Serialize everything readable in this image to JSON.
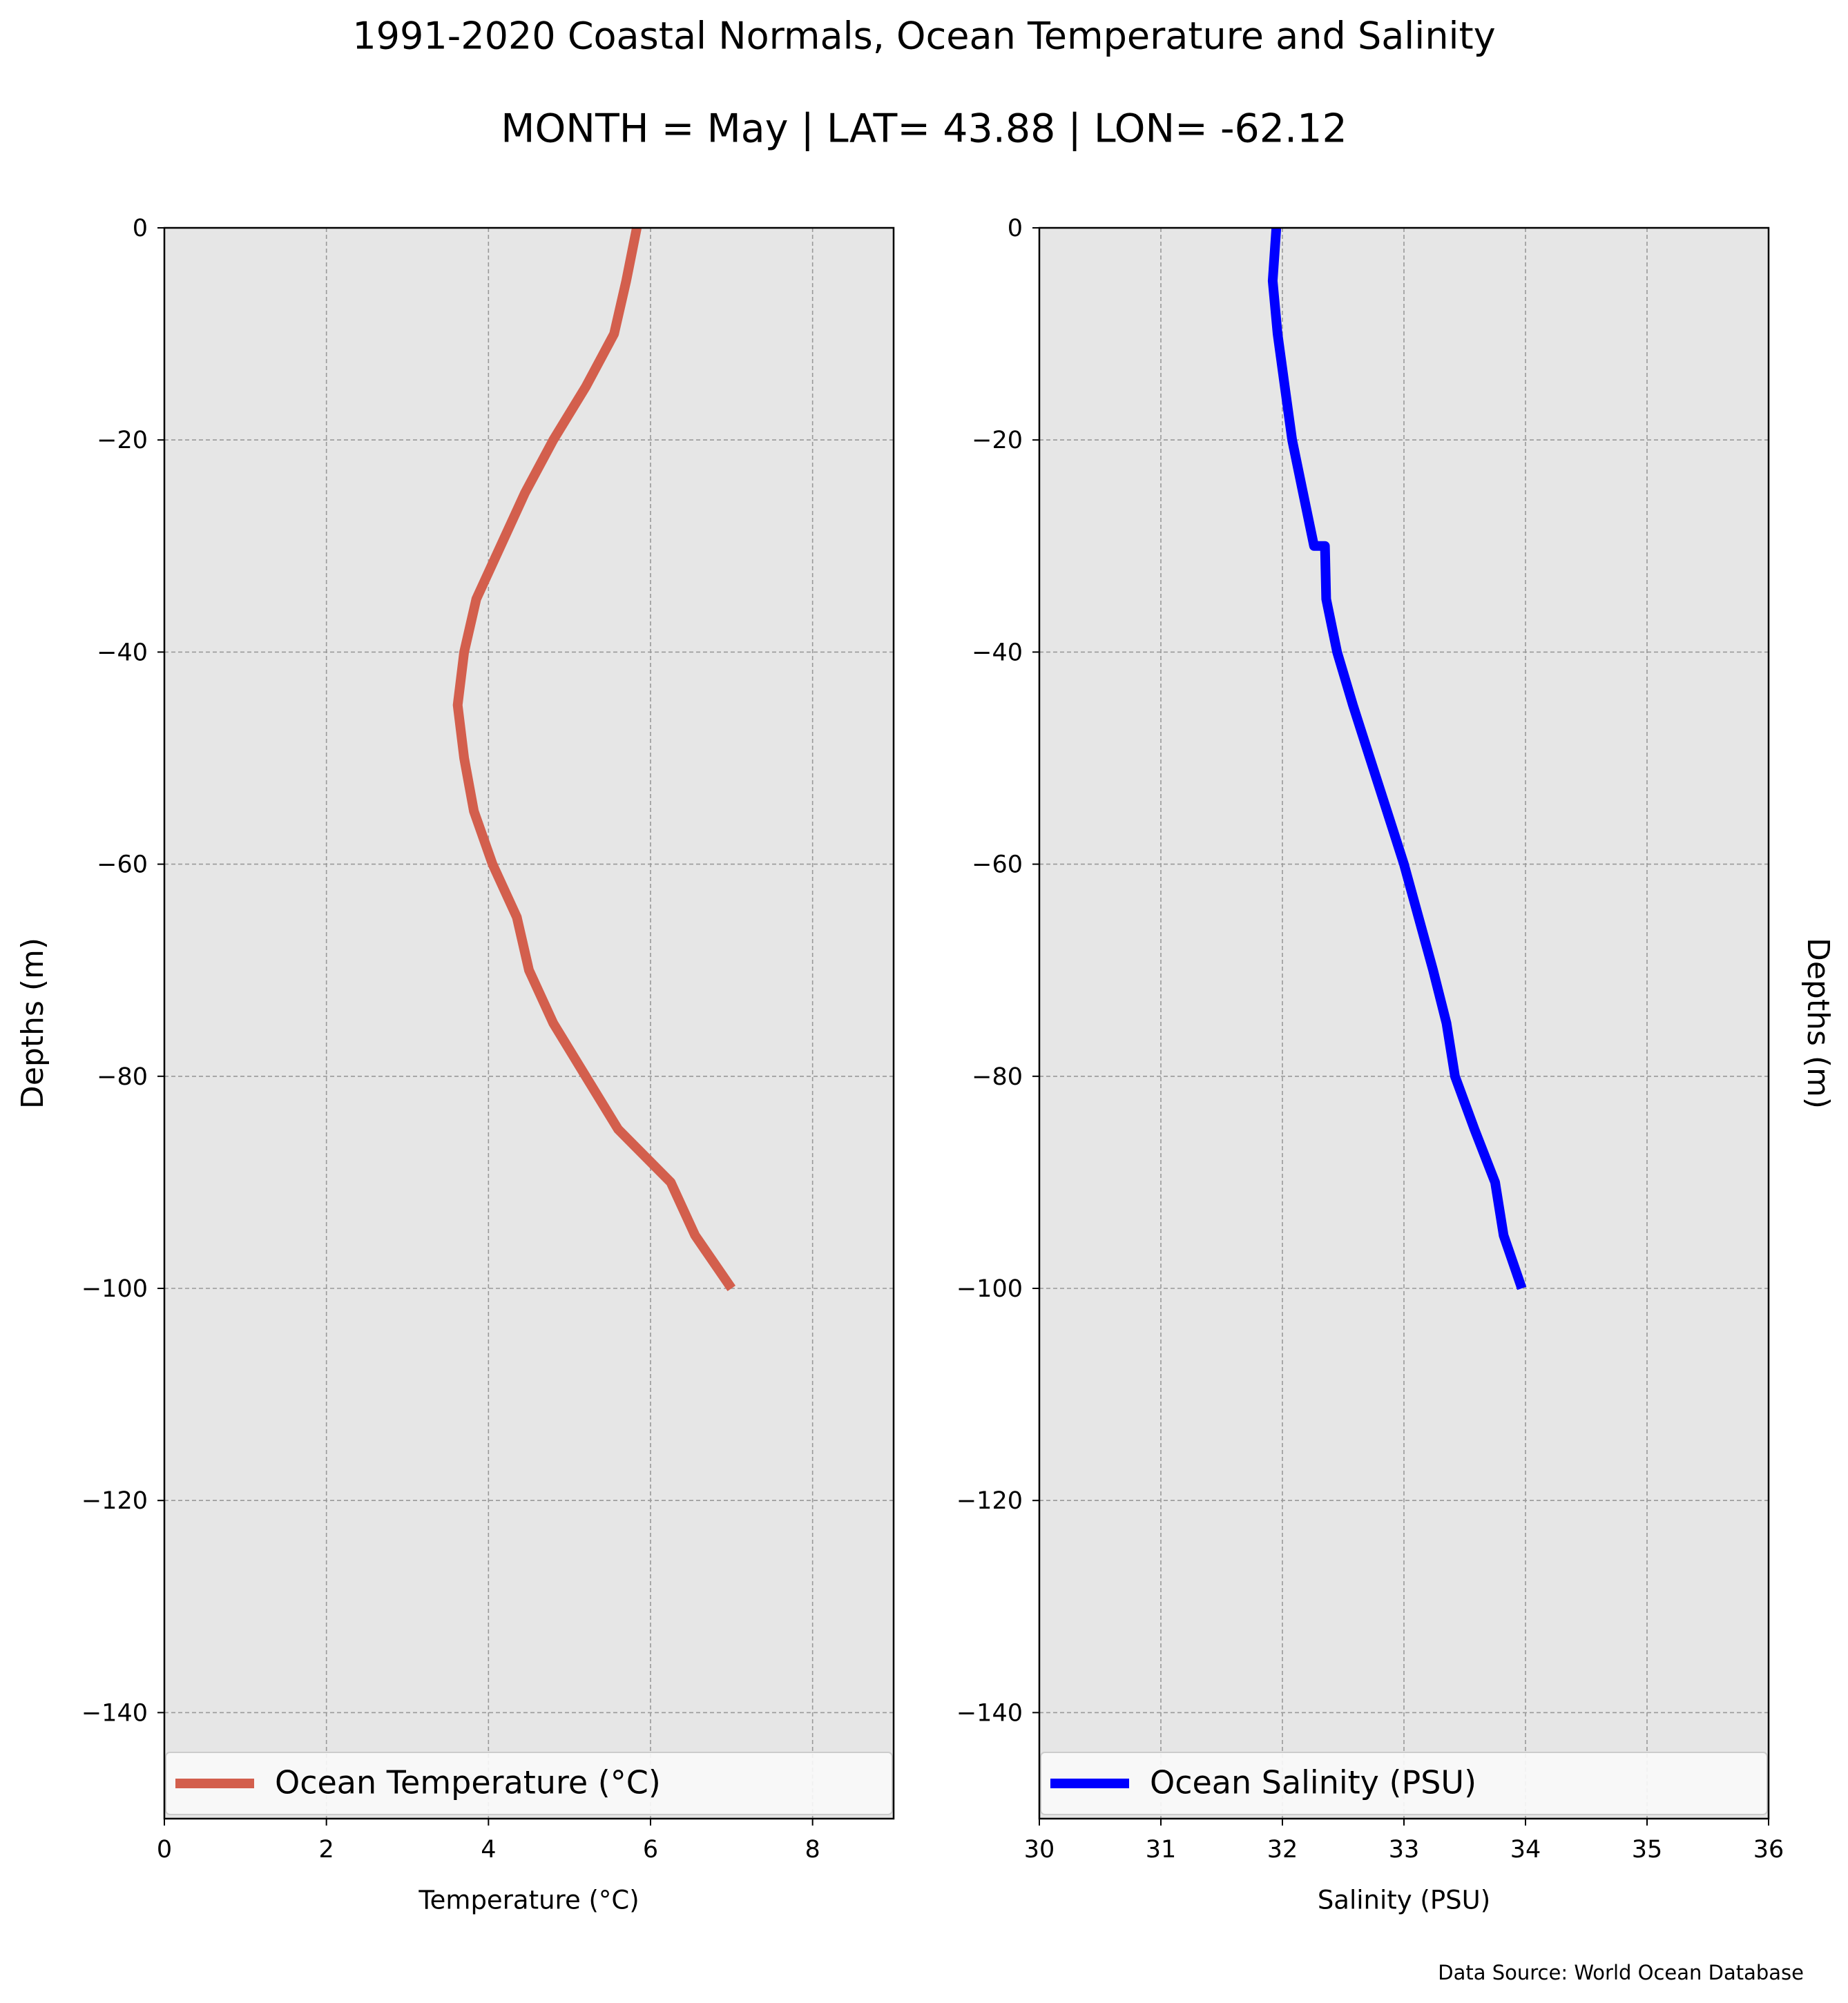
{
  "figure": {
    "title": "1991-2020 Coastal Normals, Ocean Temperature and Salinity",
    "subtitle": "MONTH = May | LAT= 43.88 | LON= -62.12",
    "source": "Data Source: World Ocean Database",
    "colors": {
      "background": "#ffffff",
      "plot_background": "#e6e6e6",
      "grid": "#999999"
    }
  },
  "chart_data": [
    {
      "type": "line",
      "title": "",
      "xlabel": "Temperature ($^\\circ$C)",
      "xlabel_display": "Temperature (°C)",
      "ylabel": "Depths (m)",
      "xlim": [
        0,
        9
      ],
      "ylim": [
        -150,
        0
      ],
      "xticks": [
        0,
        2,
        4,
        6,
        8
      ],
      "xtick_labels": [
        "0",
        "2",
        "4",
        "6",
        "8"
      ],
      "yticks": [
        0,
        -20,
        -40,
        -60,
        -80,
        -100,
        -120,
        -140
      ],
      "ytick_labels": [
        "0",
        "−20",
        "−40",
        "−60",
        "−80",
        "−100",
        "−120",
        "−140"
      ],
      "grid": true,
      "legend_position": "bottom",
      "series": [
        {
          "name": "Ocean Temperature (°C)",
          "color": "#d35f4d",
          "x": [
            5.83,
            5.7,
            5.55,
            5.2,
            4.8,
            4.45,
            4.15,
            3.85,
            3.7,
            3.62,
            3.7,
            3.82,
            4.05,
            4.35,
            4.5,
            4.8,
            5.2,
            5.6,
            6.25,
            6.55,
            7.0
          ],
          "y": [
            0,
            -5,
            -10,
            -15,
            -20,
            -25,
            -30,
            -35,
            -40,
            -45,
            -50,
            -55,
            -60,
            -65,
            -70,
            -75,
            -80,
            -85,
            -90,
            -95,
            -100
          ]
        }
      ]
    },
    {
      "type": "line",
      "title": "",
      "xlabel": "Salinity (PSU)",
      "ylabel": "Depths (m)",
      "xlim": [
        30,
        36
      ],
      "ylim": [
        -150,
        0
      ],
      "xticks": [
        30,
        31,
        32,
        33,
        34,
        35,
        36
      ],
      "xtick_labels": [
        "30",
        "31",
        "32",
        "33",
        "34",
        "35",
        "36"
      ],
      "yticks": [
        0,
        -20,
        -40,
        -60,
        -80,
        -100,
        -120,
        -140
      ],
      "ytick_labels": [
        "0",
        "−20",
        "−40",
        "−60",
        "−80",
        "−100",
        "−120",
        "−140"
      ],
      "grid": true,
      "legend_position": "bottom",
      "series": [
        {
          "name": "Ocean Salinity (PSU)",
          "color": "#0000ff",
          "x": [
            31.95,
            31.92,
            31.96,
            32.02,
            32.08,
            32.17,
            32.26,
            32.35,
            32.36,
            32.45,
            32.58,
            32.72,
            32.86,
            33.0,
            33.12,
            33.24,
            33.35,
            33.42,
            33.58,
            33.75,
            33.82,
            33.97
          ],
          "y": [
            0,
            -5,
            -10,
            -15,
            -20,
            -25,
            -30,
            -30,
            -35,
            -40,
            -45,
            -50,
            -55,
            -60,
            -65,
            -70,
            -75,
            -80,
            -85,
            -90,
            -95,
            -100
          ]
        }
      ]
    }
  ]
}
